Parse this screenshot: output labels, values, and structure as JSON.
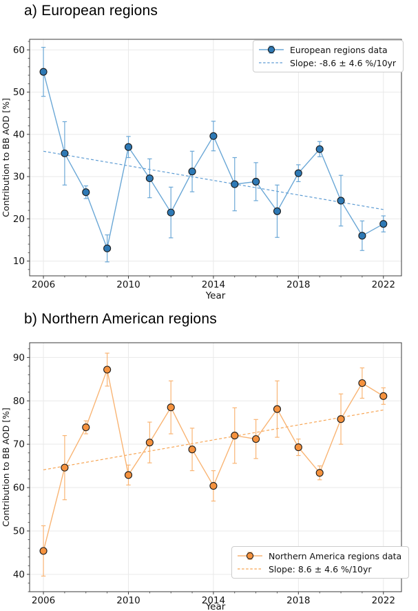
{
  "figure": {
    "background": "#ffffff"
  },
  "chart_data": [
    {
      "type": "line",
      "panel_title": "a) European regions",
      "xlabel": "Year",
      "ylabel": "Contribution to BB AOD [%]",
      "legend": {
        "position": "top-right",
        "data_label": "European regions data",
        "slope_label": "Slope: -8.6 ± 4.6 %/10yr"
      },
      "x": [
        2006,
        2007,
        2008,
        2009,
        2010,
        2011,
        2012,
        2013,
        2014,
        2015,
        2016,
        2017,
        2018,
        2019,
        2020,
        2021,
        2022
      ],
      "values": [
        54.8,
        35.5,
        26.3,
        13.0,
        37.0,
        29.6,
        21.5,
        31.2,
        39.6,
        28.2,
        28.8,
        21.8,
        30.8,
        36.5,
        24.3,
        16.0,
        18.8
      ],
      "errors": [
        5.8,
        7.5,
        1.5,
        3.2,
        2.5,
        4.6,
        6.0,
        4.8,
        3.5,
        6.3,
        4.5,
        6.2,
        2.0,
        1.8,
        6.0,
        3.5,
        1.9
      ],
      "trend": {
        "x": [
          2006,
          2022
        ],
        "y": [
          36.0,
          22.2
        ]
      },
      "xticks": [
        2006,
        2010,
        2014,
        2018,
        2022
      ],
      "yticks": [
        10,
        20,
        30,
        40,
        50,
        60
      ],
      "xlim": [
        2005.35,
        2022.85
      ],
      "ylim": [
        6.5,
        62.5
      ],
      "x_minor_step": 1,
      "y_minor_step": 2,
      "grid": true,
      "colors": {
        "marker": "#2e79b5",
        "line": "#6aa7d6",
        "trend": "#5c9bd3",
        "marker_edge": "#1a1a1a"
      }
    },
    {
      "type": "line",
      "panel_title": "b) Northern American regions",
      "xlabel": "Year",
      "ylabel": "Contribution to BB AOD [%]",
      "legend": {
        "position": "bottom-right",
        "data_label": "Northern America regions data",
        "slope_label": "Slope: 8.6 ± 4.6 %/10yr"
      },
      "x": [
        2006,
        2007,
        2008,
        2009,
        2010,
        2011,
        2012,
        2013,
        2014,
        2015,
        2016,
        2017,
        2018,
        2019,
        2020,
        2021,
        2022
      ],
      "values": [
        45.4,
        64.6,
        73.9,
        87.2,
        62.9,
        70.4,
        78.5,
        68.8,
        60.4,
        72.0,
        71.2,
        78.1,
        69.3,
        63.4,
        75.8,
        84.1,
        81.1
      ],
      "errors": [
        5.8,
        7.4,
        1.5,
        3.8,
        2.3,
        4.7,
        6.1,
        4.9,
        3.5,
        6.4,
        4.5,
        6.5,
        1.9,
        1.6,
        5.8,
        3.5,
        1.9
      ],
      "trend": {
        "x": [
          2006,
          2022
        ],
        "y": [
          64.1,
          77.9
        ]
      },
      "xticks": [
        2006,
        2010,
        2014,
        2018,
        2022
      ],
      "yticks": [
        40,
        50,
        60,
        70,
        80,
        90
      ],
      "xlim": [
        2005.35,
        2022.85
      ],
      "ylim": [
        36.0,
        93.4
      ],
      "x_minor_step": 1,
      "y_minor_step": 2,
      "grid": true,
      "colors": {
        "marker": "#f5923e",
        "line": "#f9b473",
        "trend": "#f7a452",
        "marker_edge": "#1a1a1a"
      }
    }
  ]
}
